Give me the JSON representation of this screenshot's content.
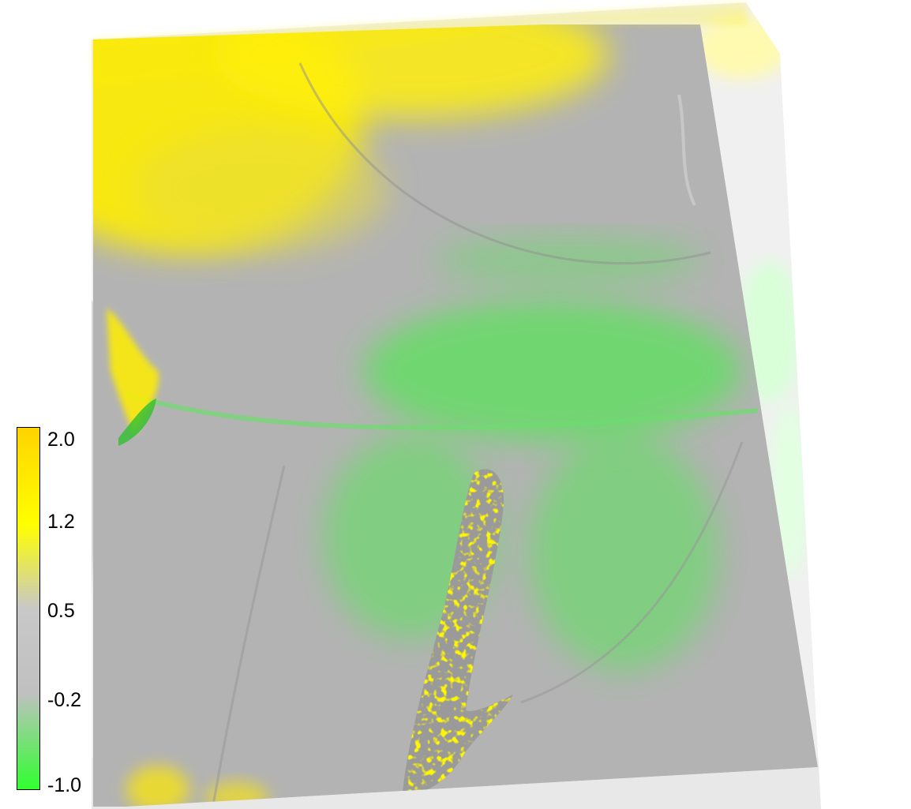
{
  "colorbar": {
    "ticks": [
      "2.0",
      "1.2",
      "0.5",
      "-0.2",
      "-1.0"
    ],
    "stops": [
      {
        "value": 2.0,
        "color": "#ffd400"
      },
      {
        "value": 1.2,
        "color": "#ffff00"
      },
      {
        "value": 0.5,
        "color": "#c8c8c8"
      },
      {
        "value": -0.2,
        "color": "#c0c0c0"
      },
      {
        "value": -1.0,
        "color": "#30ff30"
      }
    ]
  },
  "colors": {
    "background": "#ffffff",
    "terrain_gray": "#b4b4b4",
    "hillshade_light": "#e6e6e6",
    "positive_yellow": "#ffee00",
    "negative_green": "#44ee44"
  },
  "icons": [
    "colorbar-icon"
  ]
}
